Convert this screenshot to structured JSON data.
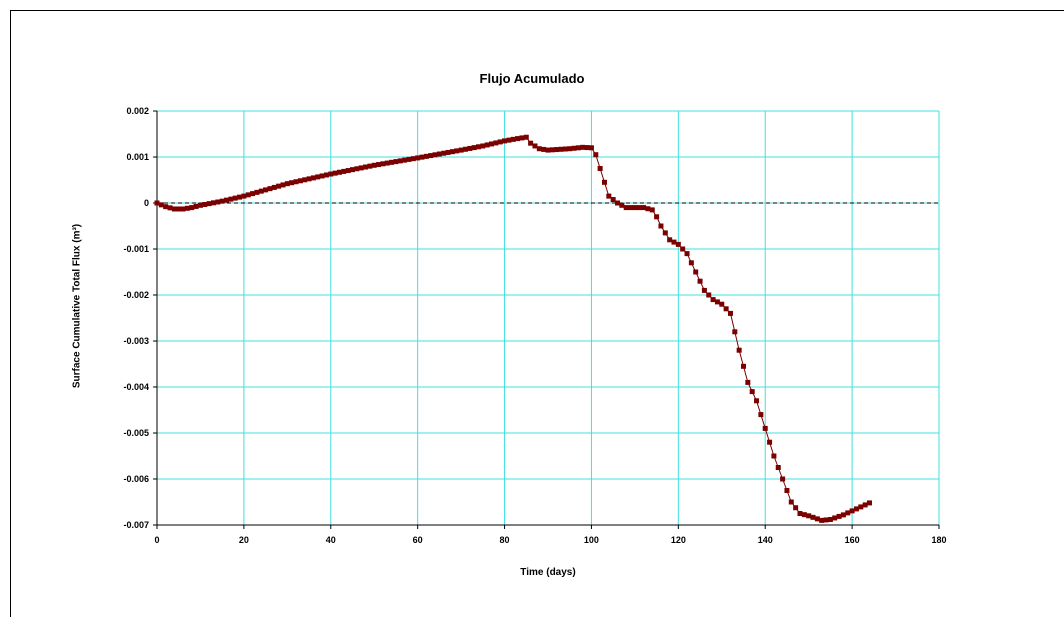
{
  "chart_data": {
    "type": "line",
    "title": "Flujo Acumulado",
    "xlabel": "Time (days)",
    "ylabel": "Surface Cumulative Total Flux (m³)",
    "xlim": [
      0,
      180
    ],
    "ylim": [
      -0.007,
      0.002
    ],
    "xticks": [
      0,
      20,
      40,
      60,
      80,
      100,
      120,
      140,
      160,
      180
    ],
    "xtick_labels": [
      "0",
      "20",
      "40",
      "60",
      "80",
      "100",
      "120",
      "140",
      "160",
      "180"
    ],
    "yticks": [
      0.002,
      0.001,
      0,
      -0.001,
      -0.002,
      -0.003,
      -0.004,
      -0.005,
      -0.006,
      -0.007
    ],
    "ytick_labels": [
      "0.002",
      "0.001",
      "0",
      "-0.001",
      "-0.002",
      "-0.003",
      "-0.004",
      "-0.005",
      "-0.006",
      "-0.007"
    ],
    "grid": true,
    "grid_color": "#40e0e0",
    "series_color": "#7b0000",
    "reference_line": {
      "y": 0,
      "style": "dashed"
    },
    "keypoints": [
      [
        0,
        0
      ],
      [
        2,
        -8e-05
      ],
      [
        4,
        -0.00013
      ],
      [
        6,
        -0.00013
      ],
      [
        8,
        -0.0001
      ],
      [
        10,
        -5e-05
      ],
      [
        15,
        4e-05
      ],
      [
        20,
        0.00015
      ],
      [
        30,
        0.00042
      ],
      [
        40,
        0.00063
      ],
      [
        50,
        0.00082
      ],
      [
        60,
        0.00098
      ],
      [
        70,
        0.00115
      ],
      [
        75,
        0.00124
      ],
      [
        80,
        0.00135
      ],
      [
        83,
        0.0014
      ],
      [
        85,
        0.00143
      ],
      [
        86,
        0.0013
      ],
      [
        88,
        0.00118
      ],
      [
        90,
        0.00115
      ],
      [
        95,
        0.00118
      ],
      [
        98,
        0.00121
      ],
      [
        100,
        0.0012
      ],
      [
        101,
        0.00105
      ],
      [
        102,
        0.00075
      ],
      [
        103,
        0.00045
      ],
      [
        104,
        0.00015
      ],
      [
        106,
        0
      ],
      [
        108,
        -0.0001
      ],
      [
        110,
        -0.0001
      ],
      [
        112,
        -0.0001
      ],
      [
        114,
        -0.00015
      ],
      [
        115,
        -0.0003
      ],
      [
        116,
        -0.0005
      ],
      [
        118,
        -0.0008
      ],
      [
        120,
        -0.0009
      ],
      [
        122,
        -0.0011
      ],
      [
        124,
        -0.0015
      ],
      [
        126,
        -0.0019
      ],
      [
        128,
        -0.0021
      ],
      [
        130,
        -0.0022
      ],
      [
        132,
        -0.0024
      ],
      [
        134,
        -0.0032
      ],
      [
        136,
        -0.0039
      ],
      [
        138,
        -0.0043
      ],
      [
        140,
        -0.0049
      ],
      [
        142,
        -0.0055
      ],
      [
        144,
        -0.006
      ],
      [
        146,
        -0.0065
      ],
      [
        148,
        -0.00675
      ],
      [
        150,
        -0.0068
      ],
      [
        153,
        -0.0069
      ],
      [
        155,
        -0.00688
      ],
      [
        158,
        -0.00678
      ],
      [
        161,
        -0.00665
      ],
      [
        164,
        -0.00652
      ]
    ],
    "marker_step": 1
  }
}
